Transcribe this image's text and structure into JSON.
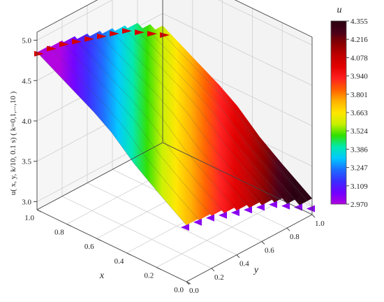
{
  "chart_data": {
    "type": "surface3d",
    "zlabel": "u( x, y, k/10, 0.1 s)   ( k=0,1,...,10 )",
    "xlabel": "x",
    "ylabel": "y",
    "xlim": [
      0.0,
      1.0
    ],
    "ylim": [
      0.0,
      1.0
    ],
    "zlim": [
      2.9,
      5.1
    ],
    "x_ticks": [
      "0.0",
      "0.2",
      "0.4",
      "0.6",
      "0.8",
      "1.0"
    ],
    "y_ticks": [
      "0.0",
      "0.2",
      "0.4",
      "0.6",
      "0.8",
      "1.0"
    ],
    "z_ticks": [
      "3.0",
      "3.5",
      "4.0",
      "4.5",
      "5.0"
    ],
    "colorbar": {
      "title": "u",
      "ticks": [
        "4.355",
        "4.216",
        "4.078",
        "3.940",
        "3.801",
        "3.663",
        "3.524",
        "3.386",
        "3.247",
        "3.109",
        "2.970"
      ],
      "range": [
        2.97,
        4.355
      ],
      "colors": [
        "#2a0010",
        "#4a0018",
        "#8c0000",
        "#c00000",
        "#e30000",
        "#ff2020",
        "#ff6000",
        "#ffb000",
        "#ffe600",
        "#c8f000",
        "#30e000",
        "#00e8b0",
        "#00c8ff",
        "#1c6cff",
        "#3a2cff",
        "#7000ff",
        "#b000e0"
      ]
    },
    "series": [
      {
        "values": [
          [
            0.0,
            3.6
          ],
          [
            0.2,
            3.85
          ],
          [
            0.35,
            4.05
          ],
          [
            0.5,
            4.3
          ],
          [
            0.62,
            4.45
          ],
          [
            1.0,
            4.85
          ]
        ]
      },
      {
        "values": [
          [
            0.0,
            3.58
          ],
          [
            0.2,
            3.83
          ],
          [
            0.35,
            4.03
          ],
          [
            0.5,
            4.28
          ],
          [
            0.62,
            4.43
          ],
          [
            1.0,
            4.83
          ]
        ]
      },
      {
        "values": [
          [
            0.0,
            3.55
          ],
          [
            0.2,
            3.8
          ],
          [
            0.35,
            4.0
          ],
          [
            0.5,
            4.25
          ],
          [
            0.62,
            4.4
          ],
          [
            1.0,
            4.8
          ]
        ]
      },
      {
        "values": [
          [
            0.0,
            3.5
          ],
          [
            0.2,
            3.75
          ],
          [
            0.35,
            3.95
          ],
          [
            0.5,
            4.2
          ],
          [
            0.62,
            4.35
          ],
          [
            1.0,
            4.75
          ]
        ]
      },
      {
        "values": [
          [
            0.0,
            3.45
          ],
          [
            0.2,
            3.7
          ],
          [
            0.35,
            3.9
          ],
          [
            0.5,
            4.15
          ],
          [
            0.62,
            4.3
          ],
          [
            1.0,
            4.7
          ]
        ]
      },
      {
        "values": [
          [
            0.0,
            3.4
          ],
          [
            0.2,
            3.65
          ],
          [
            0.35,
            3.85
          ],
          [
            0.5,
            4.1
          ],
          [
            0.62,
            4.25
          ],
          [
            1.0,
            4.65
          ]
        ]
      },
      {
        "values": [
          [
            0.0,
            3.35
          ],
          [
            0.2,
            3.6
          ],
          [
            0.35,
            3.8
          ],
          [
            0.5,
            4.05
          ],
          [
            0.62,
            4.2
          ],
          [
            1.0,
            4.6
          ]
        ]
      },
      {
        "values": [
          [
            0.0,
            3.3
          ],
          [
            0.2,
            3.55
          ],
          [
            0.35,
            3.75
          ],
          [
            0.5,
            4.0
          ],
          [
            0.62,
            4.15
          ],
          [
            1.0,
            4.55
          ]
        ]
      },
      {
        "values": [
          [
            0.0,
            3.2
          ],
          [
            0.2,
            3.45
          ],
          [
            0.35,
            3.65
          ],
          [
            0.5,
            3.9
          ],
          [
            0.62,
            4.05
          ],
          [
            1.0,
            4.45
          ]
        ]
      },
      {
        "values": [
          [
            0.0,
            3.1
          ],
          [
            0.2,
            3.35
          ],
          [
            0.35,
            3.55
          ],
          [
            0.5,
            3.8
          ],
          [
            0.62,
            3.95
          ],
          [
            1.0,
            4.35
          ]
        ]
      },
      {
        "values": [
          [
            0.0,
            3.0
          ],
          [
            0.2,
            3.25
          ],
          [
            0.35,
            3.45
          ],
          [
            0.5,
            3.7
          ],
          [
            0.62,
            3.85
          ],
          [
            1.0,
            4.25
          ]
        ]
      }
    ]
  }
}
